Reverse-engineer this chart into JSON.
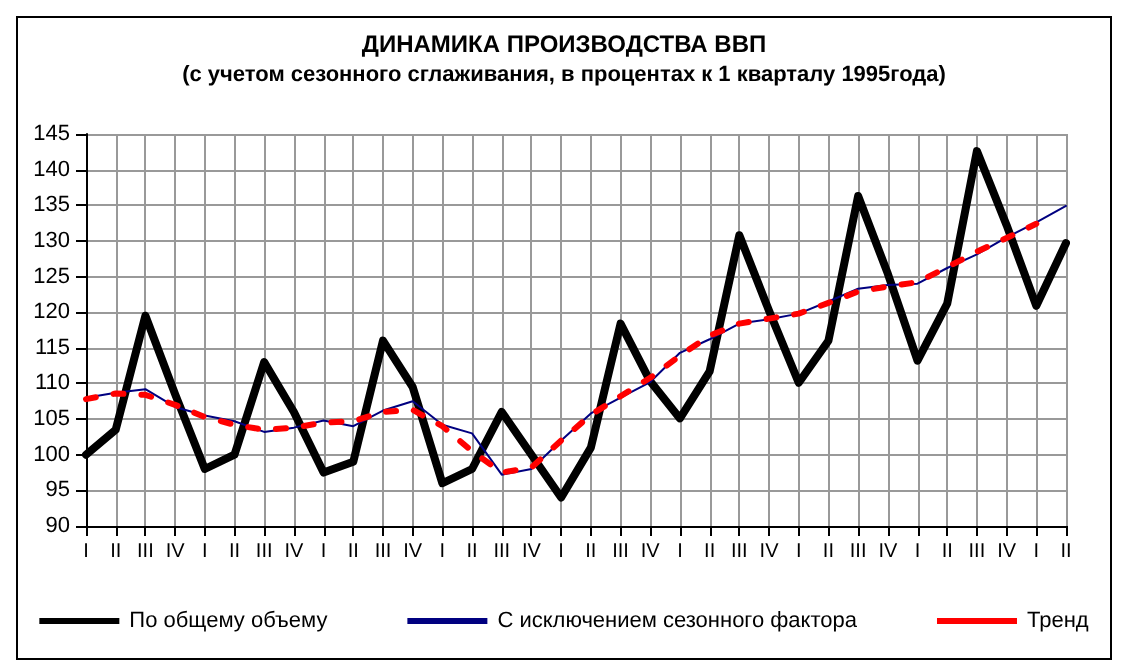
{
  "chart_data": {
    "type": "line",
    "title": "ДИНАМИКА ПРОИЗВОДСТВА ВВП",
    "subtitle": "(с учетом сезонного сглаживания, в процентах к 1 кварталу 1995года)",
    "categories": [
      "I",
      "II",
      "III",
      "IV",
      "I",
      "II",
      "III",
      "IV",
      "I",
      "II",
      "III",
      "IV",
      "I",
      "II",
      "III",
      "IV",
      "I",
      "II",
      "III",
      "IV",
      "I",
      "II",
      "III",
      "IV",
      "I",
      "II",
      "III",
      "IV",
      "I",
      "II",
      "III",
      "IV",
      "I",
      "II"
    ],
    "series": [
      {
        "name": "По общему объему",
        "color": "#000000",
        "line_style": "solid",
        "values": [
          100,
          103.5,
          119.5,
          108.5,
          98,
          100,
          113,
          106,
          97.5,
          99,
          116,
          109.5,
          96,
          98,
          106,
          100,
          94,
          101,
          118.4,
          110.3,
          105.1,
          111.7,
          130.8,
          120.2,
          110.1,
          116,
          136.3,
          125.4,
          113.2,
          121.2,
          142.6,
          132.2,
          120.9,
          129.7
        ]
      },
      {
        "name": "С исключением сезонного фактора",
        "color": "#000080",
        "line_style": "solid",
        "values": [
          108,
          108.7,
          109.2,
          106.7,
          105.5,
          104.7,
          103.2,
          103.8,
          104.8,
          104,
          106.2,
          107.5,
          104.2,
          103,
          97.2,
          98,
          102,
          105.8,
          108,
          110.2,
          114.3,
          116.2,
          118.4,
          119,
          119.8,
          121.5,
          123.3,
          123.8,
          124,
          126.2,
          128.1,
          130.5,
          132.6,
          134.9
        ]
      },
      {
        "name": "Тренд",
        "color": "#ff0000",
        "line_style": "dashed",
        "values": [
          107.8,
          108.6,
          108.4,
          107,
          105.3,
          104.2,
          103.5,
          103.8,
          104.5,
          104.7,
          106,
          106.3,
          104,
          100.5,
          97.5,
          98.2,
          102,
          105.6,
          108.2,
          110.8,
          113.9,
          116.7,
          118.4,
          119.1,
          119.8,
          121.3,
          122.9,
          123.6,
          124.2,
          126.3,
          128.5,
          130.4,
          132.4,
          null
        ]
      }
    ],
    "ylim": [
      90,
      145
    ],
    "yticks": [
      90,
      95,
      100,
      105,
      110,
      115,
      120,
      125,
      130,
      135,
      140,
      145
    ],
    "grid": true,
    "legend": "bottom",
    "marker": "none"
  }
}
